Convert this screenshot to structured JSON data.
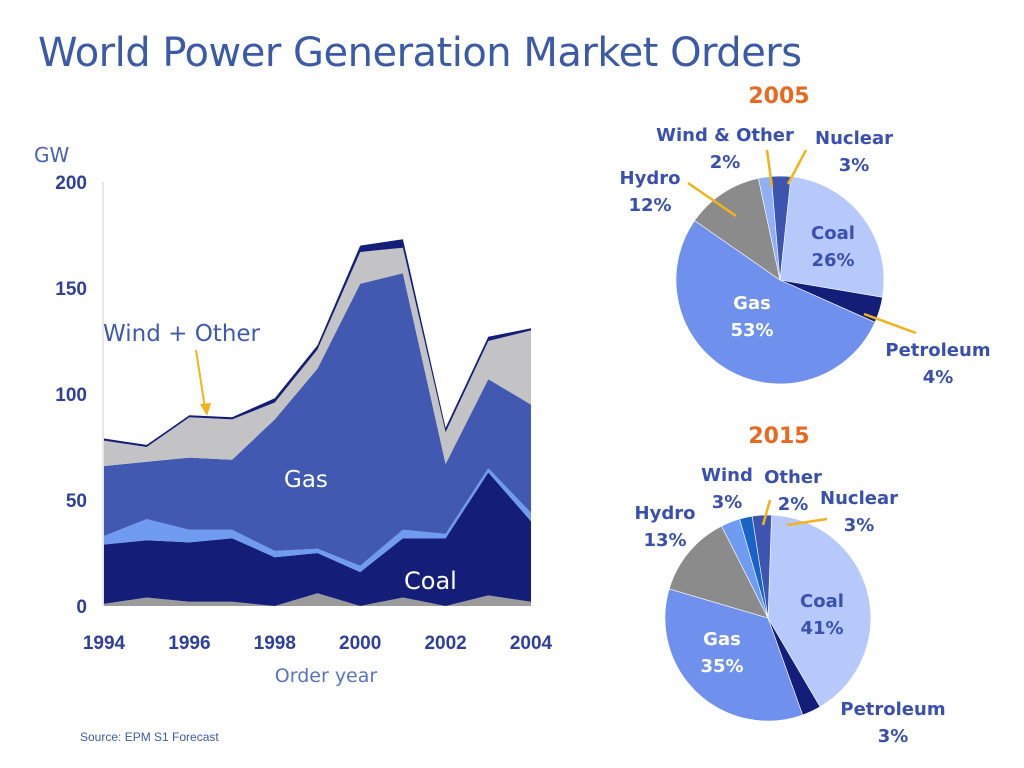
{
  "title": "World Power Generation Market Orders",
  "source": "Source: EPM S1 Forecast",
  "colors": {
    "title": "#3b5aa8",
    "coal": "#141e78",
    "oil_band": "#9b9b9b",
    "petroleum_band": "#6f9bf0",
    "gas": "#4159b0",
    "wind_other": "#c3c3c5",
    "nuclear_band": "#141e78",
    "pie_coal": "#b7c9fb",
    "pie_petroleum": "#141e78",
    "pie_gas": "#6f90ec",
    "pie_hydro": "#8b8b8b",
    "pie_wind_other": "#8fb0f5",
    "pie_wind": "#6f9bf0",
    "pie_other": "#1863c8",
    "pie_nuclear": "#3e55b0",
    "year_label": "#e86a1e",
    "leader": "#f3b31a"
  },
  "chart_data": [
    {
      "type": "area",
      "stacked": true,
      "title": "",
      "ylabel": "GW",
      "xlabel": "Order year",
      "ylim": [
        0,
        200
      ],
      "yticks": [
        "0",
        "50",
        "100",
        "150",
        "200"
      ],
      "xticks": [
        "1994",
        "1996",
        "1998",
        "2000",
        "2002",
        "2004"
      ],
      "x": [
        1994,
        1995,
        1996,
        1997,
        1998,
        1999,
        2000,
        2001,
        2002,
        2003,
        2004
      ],
      "series": [
        {
          "name": "",
          "values": [
            1,
            4,
            2,
            2,
            0,
            6,
            0,
            4,
            0,
            5,
            2
          ]
        },
        {
          "name": "Coal",
          "values": [
            28,
            27,
            28,
            30,
            23,
            19,
            16,
            28,
            32,
            58,
            38
          ]
        },
        {
          "name": "",
          "values": [
            4,
            10,
            6,
            4,
            3,
            2,
            3,
            4,
            2,
            2,
            4
          ]
        },
        {
          "name": "Gas",
          "values": [
            33,
            27,
            34,
            33,
            62,
            85,
            133,
            121,
            33,
            42,
            51
          ]
        },
        {
          "name": "Wind + Other",
          "values": [
            12,
            7,
            19,
            19,
            8,
            9,
            15,
            12,
            15,
            18,
            35
          ]
        },
        {
          "name": "",
          "values": [
            1,
            1,
            1,
            1,
            2,
            2,
            3,
            4,
            2,
            2,
            1
          ]
        }
      ],
      "annotations": [
        "Wind + Other",
        "Gas",
        "Coal"
      ]
    },
    {
      "type": "pie",
      "title": "2005",
      "slices": [
        {
          "label": "Coal",
          "value": 26,
          "text": "26%"
        },
        {
          "label": "Petroleum",
          "value": 4,
          "text": "4%"
        },
        {
          "label": "Gas",
          "value": 53,
          "text": "53%"
        },
        {
          "label": "Hydro",
          "value": 12,
          "text": "12%"
        },
        {
          "label": "Wind & Other",
          "value": 2,
          "text": "2%"
        },
        {
          "label": "Nuclear",
          "value": 3,
          "text": "3%"
        }
      ]
    },
    {
      "type": "pie",
      "title": "2015",
      "slices": [
        {
          "label": "Coal",
          "value": 41,
          "text": "41%"
        },
        {
          "label": "Petroleum",
          "value": 3,
          "text": "3%"
        },
        {
          "label": "Gas",
          "value": 35,
          "text": "35%"
        },
        {
          "label": "Hydro",
          "value": 13,
          "text": "13%"
        },
        {
          "label": "Wind",
          "value": 3,
          "text": "3%"
        },
        {
          "label": "Other",
          "value": 2,
          "text": "2%"
        },
        {
          "label": "Nuclear",
          "value": 3,
          "text": "3%"
        }
      ]
    }
  ]
}
